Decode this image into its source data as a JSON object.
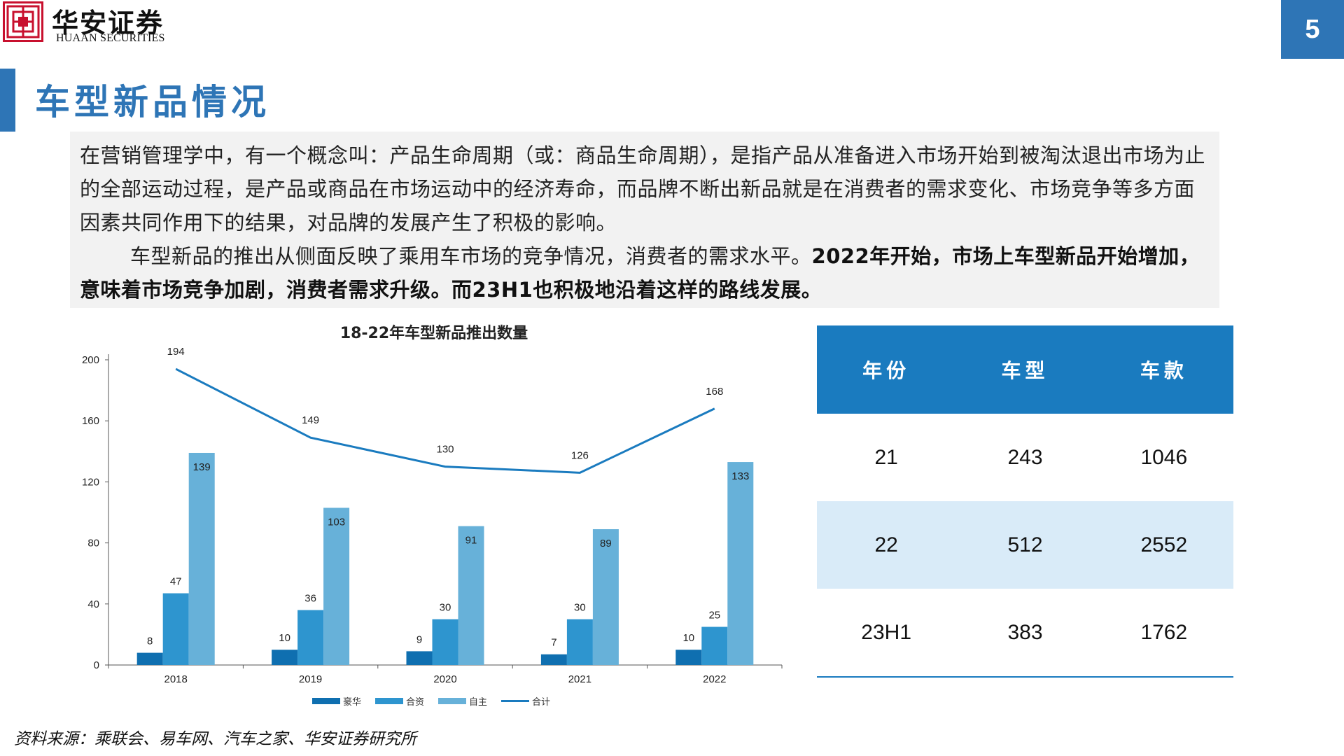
{
  "header": {
    "logo_cn": "华安证券",
    "logo_en": "HUAAN SECURITIES",
    "page_number": "5"
  },
  "title": "车型新品情况",
  "intro": {
    "p1": "在营销管理学中，有一个概念叫：产品生命周期（或：商品生命周期），是指产品从准备进入市场开始到被淘汰退出市场为止的全部运动过程，是产品或商品在市场运动中的经济寿命，而品牌不断出新品就是在消费者的需求变化、市场竞争等多方面因素共同作用下的结果，对品牌的发展产生了积极的影响。",
    "p2_normal": "车型新品的推出从侧面反映了乘用车市场的竞争情况，消费者的需求水平。",
    "p2_bold": "2022年开始，市场上车型新品开始增加，意味着市场竞争加剧，消费者需求升级。而23H1也积极地沿着这样的路线发展。"
  },
  "chart_data": {
    "type": "bar",
    "title": "18-22年车型新品推出数量",
    "categories": [
      "2018",
      "2019",
      "2020",
      "2021",
      "2022"
    ],
    "ylim": [
      0,
      200
    ],
    "yticks": [
      "0",
      "40",
      "80",
      "120",
      "160",
      "200"
    ],
    "series": [
      {
        "name": "豪华",
        "type": "bar",
        "color": "#0f6fb0",
        "values": [
          8,
          10,
          9,
          7,
          10
        ]
      },
      {
        "name": "合资",
        "type": "bar",
        "color": "#2e95cf",
        "values": [
          47,
          36,
          30,
          30,
          25
        ]
      },
      {
        "name": "自主",
        "type": "bar",
        "color": "#67b1d9",
        "values": [
          139,
          103,
          91,
          89,
          133
        ]
      },
      {
        "name": "合计",
        "type": "line",
        "color": "#1a7bbf",
        "values": [
          194,
          149,
          130,
          126,
          168
        ]
      }
    ]
  },
  "table": {
    "headers": [
      "年份",
      "车型",
      "车款"
    ],
    "rows": [
      [
        "21",
        "243",
        "1046"
      ],
      [
        "22",
        "512",
        "2552"
      ],
      [
        "23H1",
        "383",
        "1762"
      ]
    ]
  },
  "source": "资料来源：乘联会、易车网、汽车之家、华安证券研究所"
}
